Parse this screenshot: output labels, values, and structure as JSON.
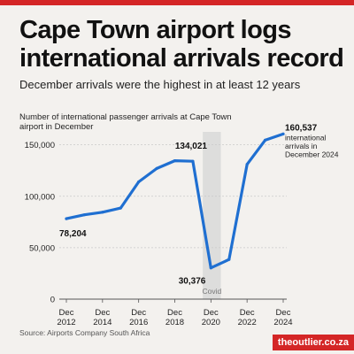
{
  "header": {
    "title": "Cape Town airport logs international arrivals record",
    "subtitle": "December arrivals were the highest in at least 12 years"
  },
  "footer": {
    "source": "Source: Airports Company South Africa",
    "brand": "theoutlier.co.za"
  },
  "colors": {
    "line": "#1f6fd1",
    "accent": "#d42626",
    "band": "#d5d5d5",
    "grid": "#c9c9c9"
  },
  "chart_data": {
    "type": "line",
    "ylabel": "Number of international passenger arrivals at Cape Town airport in December",
    "ylim": [
      0,
      160000
    ],
    "yticks": [
      0,
      50000,
      100000,
      150000
    ],
    "ytick_labels": [
      "0",
      "50,000",
      "100,000",
      "150,000"
    ],
    "xlim": [
      2012,
      2024
    ],
    "xticks": [
      2012,
      2014,
      2016,
      2018,
      2020,
      2022,
      2024
    ],
    "xtick_labels": [
      [
        "Dec",
        "2012"
      ],
      [
        "Dec",
        "2014"
      ],
      [
        "Dec",
        "2016"
      ],
      [
        "Dec",
        "2018"
      ],
      [
        "Dec",
        "2020"
      ],
      [
        "Dec",
        "2022"
      ],
      [
        "Dec",
        "2024"
      ]
    ],
    "grid": true,
    "series": [
      {
        "x": [
          2012,
          2013,
          2014,
          2015,
          2016,
          2017,
          2018,
          2019,
          2020,
          2021,
          2022,
          2023,
          2024
        ],
        "values": [
          78204,
          82000,
          84500,
          88500,
          114000,
          127000,
          134500,
          134021,
          30376,
          38500,
          131000,
          154500,
          160537
        ]
      }
    ],
    "highlight_band": {
      "x_range": [
        2019.55,
        2020.55
      ],
      "label": "Covid"
    },
    "annotations": [
      {
        "x": 2012,
        "y": 78204,
        "text": "78,204"
      },
      {
        "x": 2019,
        "y": 134021,
        "text": "134,021"
      },
      {
        "x": 2020,
        "y": 30376,
        "text": "30,376"
      },
      {
        "x": 2024,
        "y": 160537,
        "text": "160,537",
        "note": [
          "international",
          "arrivals in",
          "December 2024"
        ]
      }
    ]
  }
}
